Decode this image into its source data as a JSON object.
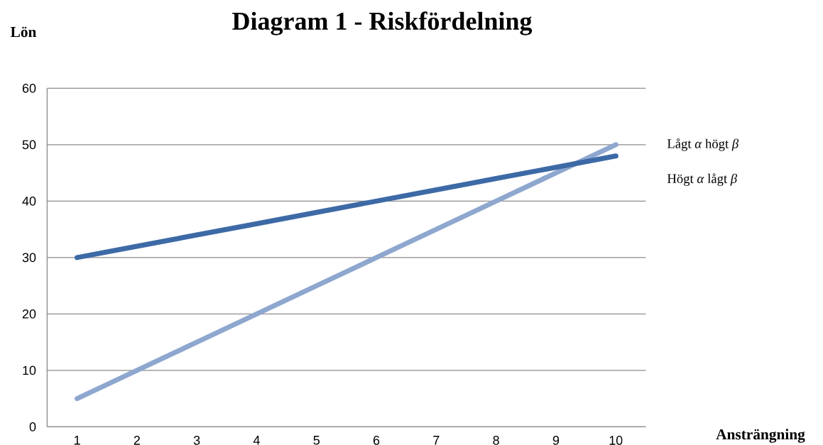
{
  "chart_data": {
    "type": "line",
    "title": "Diagram 1 - Riskfördelning",
    "xlabel": "Ansträngning",
    "ylabel": "Lön",
    "categories": [
      "1",
      "2",
      "3",
      "4",
      "5",
      "6",
      "7",
      "8",
      "9",
      "10"
    ],
    "series": [
      {
        "name": "Lågt *α* högt *β*",
        "color": "#8ea7cf",
        "values": [
          5,
          10,
          15,
          20,
          25,
          30,
          35,
          40,
          45,
          50
        ]
      },
      {
        "name": "Högt *α* lågt *β*",
        "color": "#3d6aa6",
        "values": [
          30,
          32,
          34,
          36,
          38,
          40,
          42,
          44,
          46,
          48
        ]
      }
    ],
    "ylim": [
      0,
      60
    ],
    "yticks": [
      0,
      10,
      20,
      30,
      40,
      50,
      60
    ],
    "grid": "y",
    "marker": "none",
    "line_style": "solid"
  }
}
